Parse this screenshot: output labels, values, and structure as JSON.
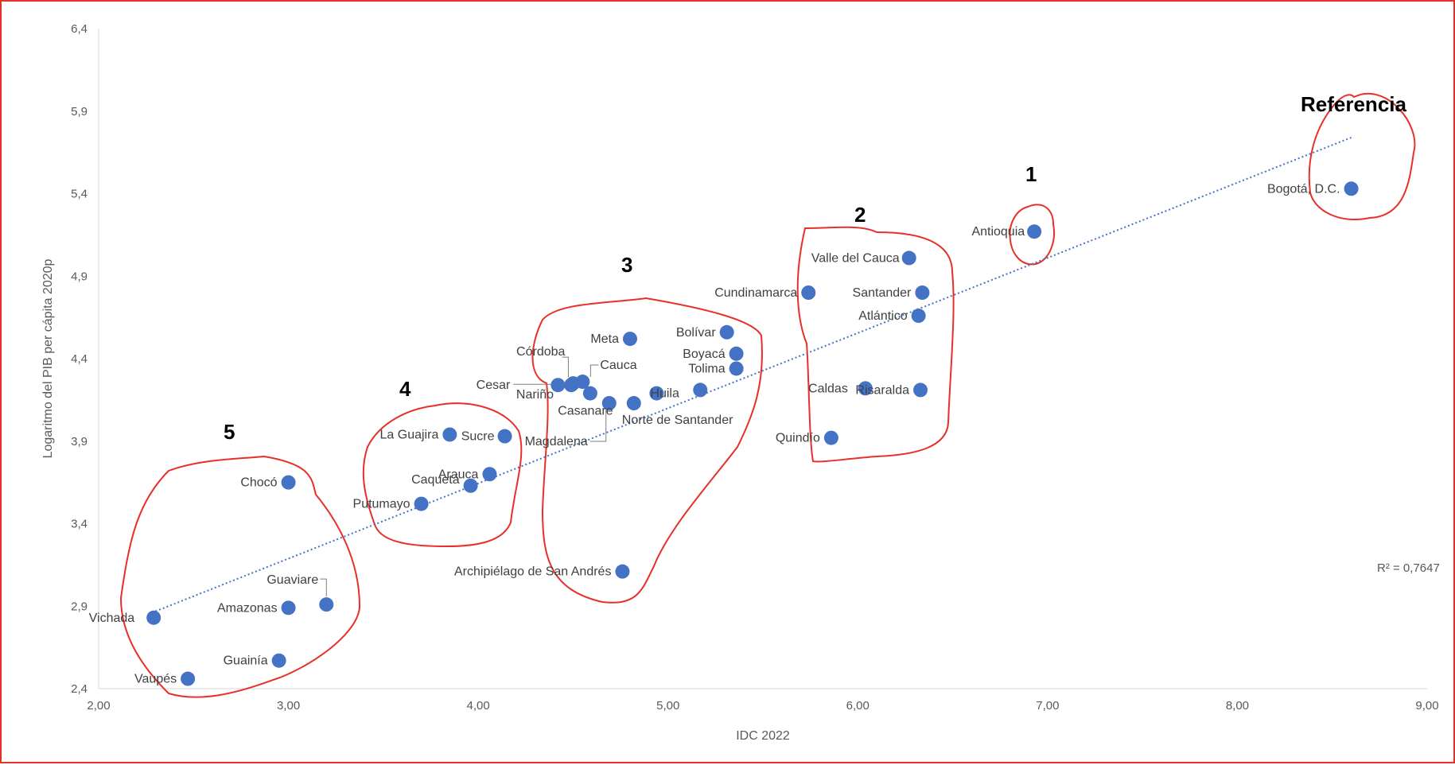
{
  "chart_data": {
    "type": "scatter",
    "xlabel": "IDC 2022",
    "ylabel": "Logaritmo del PIB per cápita 2020p",
    "xlim": [
      2,
      9
    ],
    "ylim": [
      2.4,
      6.4
    ],
    "x_ticks": [
      "2,00",
      "3,00",
      "4,00",
      "5,00",
      "6,00",
      "7,00",
      "8,00",
      "9,00"
    ],
    "y_ticks": [
      "2,4",
      "2,9",
      "3,4",
      "3,9",
      "4,4",
      "4,9",
      "5,4",
      "5,9",
      "6,4"
    ],
    "grid": false,
    "legend": "none",
    "color": "#4472c4",
    "trendline": {
      "type": "linear",
      "x": [
        2.28,
        8.6
      ],
      "y": [
        2.86,
        5.74
      ],
      "r2_label": "R² = 0,7647"
    },
    "points": [
      {
        "name": "Bogotá, D.C.",
        "x": 8.6,
        "y": 5.43
      },
      {
        "name": "Antioquia",
        "x": 6.93,
        "y": 5.17
      },
      {
        "name": "Valle del Cauca",
        "x": 6.27,
        "y": 5.01
      },
      {
        "name": "Cundinamarca",
        "x": 5.74,
        "y": 4.8
      },
      {
        "name": "Santander",
        "x": 6.34,
        "y": 4.8
      },
      {
        "name": "Atlántico",
        "x": 6.32,
        "y": 4.66
      },
      {
        "name": "Caldas",
        "x": 6.04,
        "y": 4.22
      },
      {
        "name": "Risaralda",
        "x": 6.33,
        "y": 4.21
      },
      {
        "name": "Quindío",
        "x": 5.86,
        "y": 3.92
      },
      {
        "name": "Meta",
        "x": 4.8,
        "y": 4.52
      },
      {
        "name": "Bolívar",
        "x": 5.31,
        "y": 4.56
      },
      {
        "name": "Boyacá",
        "x": 5.36,
        "y": 4.43
      },
      {
        "name": "Tolima",
        "x": 5.36,
        "y": 4.34
      },
      {
        "name": "Córdoba",
        "x": 4.5,
        "y": 4.25
      },
      {
        "name": "Cauca",
        "x": 4.55,
        "y": 4.26
      },
      {
        "name": "Cesar",
        "x": 4.42,
        "y": 4.24
      },
      {
        "name": "Nariño",
        "x": 4.49,
        "y": 4.24
      },
      {
        "name": "Casanare",
        "x": 4.59,
        "y": 4.19
      },
      {
        "name": "Magdalena",
        "x": 4.69,
        "y": 4.13
      },
      {
        "name": "Norte de Santander",
        "x": 4.82,
        "y": 4.13
      },
      {
        "name": "Huila",
        "x": 4.94,
        "y": 4.19
      },
      {
        "name": "Risaralda-dup",
        "x": 5.17,
        "y": 4.21,
        "hidden_label": true
      },
      {
        "name": "La Guajira",
        "x": 3.85,
        "y": 3.94
      },
      {
        "name": "Sucre",
        "x": 4.14,
        "y": 3.93
      },
      {
        "name": "Arauca",
        "x": 4.06,
        "y": 3.7
      },
      {
        "name": "Caquetá",
        "x": 3.96,
        "y": 3.63
      },
      {
        "name": "Putumayo",
        "x": 3.7,
        "y": 3.52
      },
      {
        "name": "Archipiélago de San Andrés",
        "x": 4.76,
        "y": 3.11
      },
      {
        "name": "Chocó",
        "x": 3.0,
        "y": 3.65
      },
      {
        "name": "Guaviare",
        "x": 3.2,
        "y": 2.91
      },
      {
        "name": "Amazonas",
        "x": 3.0,
        "y": 2.89
      },
      {
        "name": "Vichada",
        "x": 2.29,
        "y": 2.83
      },
      {
        "name": "Guainía",
        "x": 2.95,
        "y": 2.57
      },
      {
        "name": "Vaupés",
        "x": 2.47,
        "y": 2.46
      }
    ],
    "annotations": {
      "group_labels": [
        "Referencia",
        "1",
        "2",
        "3",
        "4",
        "5"
      ]
    }
  }
}
